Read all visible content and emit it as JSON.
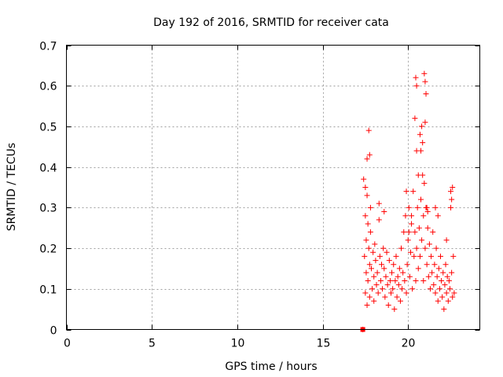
{
  "chart_data": {
    "type": "scatter",
    "title": "Day 192 of 2016, SRMTID for receiver cata",
    "xlabel": "GPS time / hours",
    "ylabel": "SRMTID / TECUs",
    "xlim": [
      0,
      24.2
    ],
    "ylim": [
      0,
      0.7
    ],
    "xticks": [
      0,
      5,
      10,
      15,
      20
    ],
    "yticks": [
      0,
      0.1,
      0.2,
      0.3,
      0.4,
      0.5,
      0.6,
      0.7
    ],
    "ytick_labels": [
      "0",
      "0.1",
      "0.2",
      "0.3",
      "0.4",
      "0.5",
      "0.6",
      "0.7"
    ],
    "grid": true,
    "marker": "+",
    "color": "#ff0000",
    "series": [
      {
        "name": "SRMTID",
        "x": [
          17.35,
          17.4,
          17.45,
          17.5,
          17.5,
          17.55,
          17.55,
          17.6,
          17.6,
          17.65,
          17.65,
          17.7,
          17.75,
          17.75,
          17.8,
          17.85,
          17.9,
          17.95,
          18.0,
          18.0,
          18.05,
          18.1,
          18.15,
          18.2,
          18.25,
          18.3,
          18.35,
          18.4,
          18.45,
          18.5,
          18.55,
          18.6,
          18.65,
          18.7,
          18.75,
          18.8,
          18.85,
          18.9,
          18.95,
          19.0,
          19.05,
          19.1,
          19.15,
          19.2,
          19.25,
          19.3,
          19.35,
          19.4,
          19.45,
          19.5,
          19.55,
          19.6,
          19.65,
          19.7,
          19.75,
          19.8,
          19.85,
          19.9,
          19.95,
          20.0,
          20.05,
          20.1,
          20.15,
          20.2,
          20.25,
          20.3,
          20.35,
          20.4,
          20.45,
          20.5,
          20.5,
          20.55,
          20.6,
          20.6,
          20.65,
          20.7,
          20.75,
          20.8,
          20.85,
          20.9,
          20.9,
          20.95,
          21.0,
          21.05,
          21.1,
          21.15,
          21.2,
          21.25,
          21.3,
          21.35,
          21.4,
          21.45,
          21.5,
          21.55,
          21.6,
          21.65,
          21.7,
          21.75,
          21.8,
          21.85,
          21.9,
          21.95,
          22.0,
          22.05,
          22.1,
          22.15,
          22.2,
          22.25,
          22.3,
          22.35,
          22.4,
          22.45,
          22.5,
          22.55,
          22.6,
          22.65,
          22.7,
          17.5,
          17.6,
          17.7,
          17.75,
          17.8,
          18.3,
          18.6,
          19.9,
          20.05,
          20.2,
          20.4,
          20.45,
          20.5,
          20.7,
          20.75,
          20.8,
          20.85,
          20.95,
          21.0,
          21.05,
          21.0,
          21.1,
          21.15,
          21.6,
          21.75,
          22.25,
          22.5,
          22.55,
          22.6
        ],
        "y": [
          0.0,
          0.37,
          0.18,
          0.28,
          0.09,
          0.22,
          0.14,
          0.33,
          0.06,
          0.26,
          0.12,
          0.2,
          0.16,
          0.08,
          0.24,
          0.15,
          0.1,
          0.19,
          0.13,
          0.07,
          0.21,
          0.17,
          0.11,
          0.14,
          0.09,
          0.27,
          0.18,
          0.12,
          0.16,
          0.1,
          0.2,
          0.15,
          0.08,
          0.13,
          0.19,
          0.11,
          0.06,
          0.17,
          0.12,
          0.09,
          0.14,
          0.1,
          0.16,
          0.05,
          0.12,
          0.18,
          0.08,
          0.13,
          0.11,
          0.15,
          0.07,
          0.2,
          0.1,
          0.14,
          0.24,
          0.12,
          0.28,
          0.09,
          0.16,
          0.22,
          0.3,
          0.13,
          0.19,
          0.26,
          0.1,
          0.34,
          0.18,
          0.24,
          0.12,
          0.44,
          0.2,
          0.3,
          0.15,
          0.38,
          0.25,
          0.18,
          0.32,
          0.22,
          0.46,
          0.28,
          0.12,
          0.36,
          0.2,
          0.3,
          0.16,
          0.25,
          0.13,
          0.21,
          0.1,
          0.18,
          0.14,
          0.24,
          0.11,
          0.16,
          0.09,
          0.2,
          0.13,
          0.07,
          0.15,
          0.1,
          0.18,
          0.12,
          0.08,
          0.14,
          0.05,
          0.11,
          0.16,
          0.09,
          0.13,
          0.07,
          0.12,
          0.1,
          0.3,
          0.14,
          0.08,
          0.18,
          0.09,
          0.35,
          0.42,
          0.49,
          0.43,
          0.3,
          0.31,
          0.29,
          0.34,
          0.24,
          0.28,
          0.52,
          0.62,
          0.6,
          0.48,
          0.44,
          0.5,
          0.38,
          0.63,
          0.61,
          0.58,
          0.51,
          0.3,
          0.29,
          0.3,
          0.28,
          0.22,
          0.34,
          0.32,
          0.35
        ]
      }
    ],
    "outlier_marker": {
      "x": 17.35,
      "y": 0.0,
      "shape": "square"
    }
  }
}
